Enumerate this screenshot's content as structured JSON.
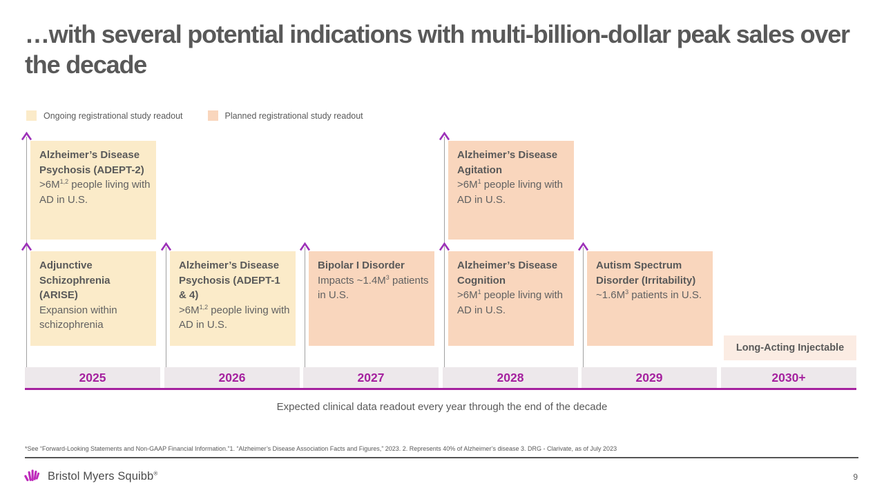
{
  "slide": {
    "title": "…with several potential indications with multi-billion-dollar peak sales over the decade",
    "caption": "Expected clinical data readout every year through the end of the decade",
    "footnote": "*See “Forward-Looking Statements and Non-GAAP Financial Information.”1. “Alzheimer’s Disease Association Facts and Figures,” 2023. 2. Represents 40% of Alzheimer’s disease 3. DRG - Clarivate, as of July 2023",
    "brand": "Bristol Myers Squibb",
    "brand_mark": "®",
    "page_number": "9"
  },
  "legend": {
    "items": [
      {
        "label": "Ongoing registrational study readout",
        "type": "ongoing"
      },
      {
        "label": "Planned registrational study readout",
        "type": "planned"
      }
    ]
  },
  "colors": {
    "ongoing": "#FBEBC9",
    "planned": "#F9D6BD",
    "label_box": "#FBECE3",
    "year_bar_bg": "#EDE8EB",
    "magenta": "#A5219F",
    "arrow": "#9C30B8",
    "line_gray": "#A0A0A0",
    "text_gray": "#595959",
    "logo_magenta": "#BE2BBB"
  },
  "timeline": {
    "columns": [
      {
        "year": "2025",
        "boxes": [
          {
            "row": "top",
            "type": "ongoing",
            "title": "Alzheimer’s Disease Psychosis (ADEPT-2)",
            "body": ">6M^{1,2} people living with AD in U.S."
          },
          {
            "row": "bottom",
            "type": "ongoing",
            "title": "Adjunctive Schizophrenia (ARISE)",
            "body": "Expansion within schizophrenia"
          }
        ]
      },
      {
        "year": "2026",
        "boxes": [
          {
            "row": "bottom",
            "type": "ongoing",
            "title": "Alzheimer’s Disease Psychosis (ADEPT-1 & 4)",
            "body": ">6M^{1,2} people living with AD in U.S."
          }
        ]
      },
      {
        "year": "2027",
        "boxes": [
          {
            "row": "bottom",
            "type": "planned",
            "title": "Bipolar I Disorder",
            "body": "Impacts ~1.4M^{3} patients in U.S."
          }
        ]
      },
      {
        "year": "2028",
        "boxes": [
          {
            "row": "top",
            "type": "planned",
            "title": "Alzheimer’s Disease Agitation",
            "body": ">6M^{1} people living with AD in U.S."
          },
          {
            "row": "bottom",
            "type": "planned",
            "title": "Alzheimer’s Disease Cognition",
            "body": ">6M^{1} people living with AD in U.S."
          }
        ]
      },
      {
        "year": "2029",
        "boxes": [
          {
            "row": "bottom",
            "type": "planned",
            "title": "Autism Spectrum Disorder (Irritability)",
            "body": "~1.6M^{3} patients in U.S."
          }
        ]
      },
      {
        "year": "2030+",
        "boxes": [
          {
            "row": "label",
            "type": "label",
            "title": "Long-Acting Injectable",
            "body": ""
          }
        ]
      }
    ]
  }
}
